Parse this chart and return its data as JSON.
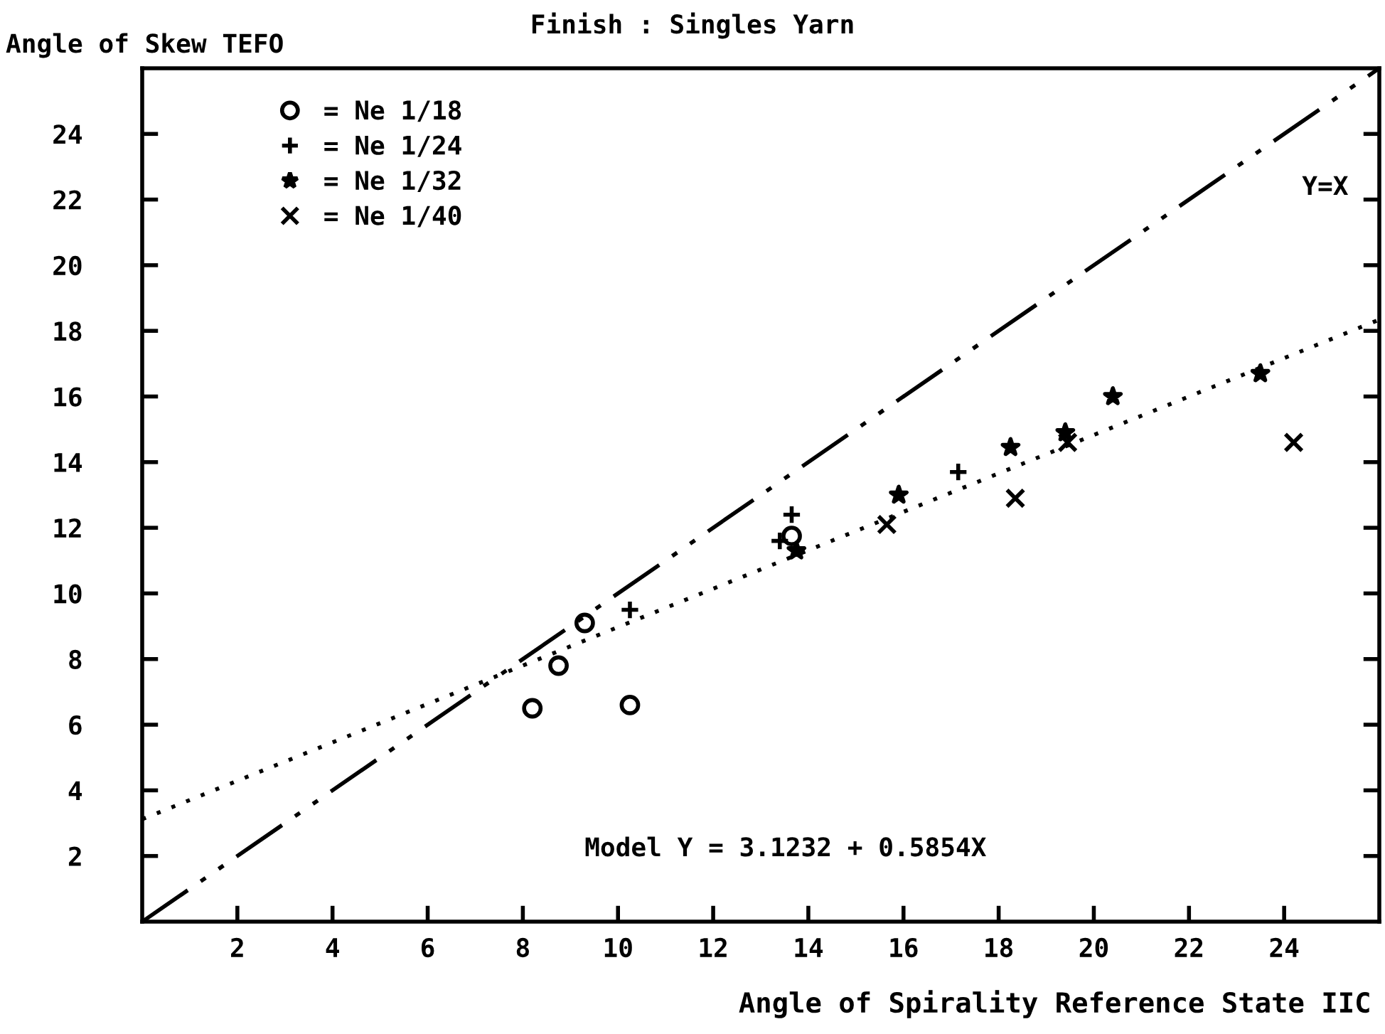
{
  "chart_data": {
    "type": "scatter",
    "title": "Finish : Singles Yarn",
    "xlabel": "Angle of Spirality Reference State IIC",
    "ylabel": "Angle of Skew TEFO",
    "xlim": [
      0,
      26
    ],
    "ylim": [
      0,
      26
    ],
    "xticks": [
      2,
      4,
      6,
      8,
      10,
      12,
      14,
      16,
      18,
      20,
      22,
      24
    ],
    "yticks": [
      2,
      4,
      6,
      8,
      10,
      12,
      14,
      16,
      18,
      20,
      22,
      24
    ],
    "grid": false,
    "legend": "top left",
    "series": [
      {
        "name": "= Ne 1/18",
        "color": "#000000",
        "marker": "circle",
        "x": [
          8.2,
          8.75,
          9.3,
          10.25,
          13.65
        ],
        "values": [
          6.5,
          7.8,
          9.1,
          6.6,
          11.75
        ]
      },
      {
        "name": "= Ne 1/24",
        "color": "#000000",
        "marker": "plus",
        "x": [
          10.25,
          13.65,
          13.4,
          17.15
        ],
        "values": [
          9.5,
          12.4,
          11.6,
          13.7
        ]
      },
      {
        "name": "= Ne 1/32",
        "color": "#000000",
        "marker": "star",
        "x": [
          13.75,
          15.9,
          18.25,
          19.4,
          20.4,
          23.5
        ],
        "values": [
          11.3,
          13.0,
          14.45,
          14.9,
          16.0,
          16.7
        ]
      },
      {
        "name": "= Ne 1/40",
        "color": "#000000",
        "marker": "cross",
        "x": [
          15.65,
          18.35,
          19.45,
          24.2
        ],
        "values": [
          12.1,
          12.9,
          14.6,
          14.6
        ]
      },
      {
        "type": "line",
        "color": "#000000",
        "line_style": "dashdotdot",
        "x": [
          0,
          26
        ],
        "values": [
          0,
          26
        ]
      },
      {
        "type": "line",
        "color": "#000000",
        "line_style": "dotted",
        "x": [
          0,
          26
        ],
        "values": [
          3.12,
          18.34
        ]
      }
    ],
    "annotations": [
      "Y=X",
      "Model Y = 3.1232 + 0.5854X"
    ]
  }
}
